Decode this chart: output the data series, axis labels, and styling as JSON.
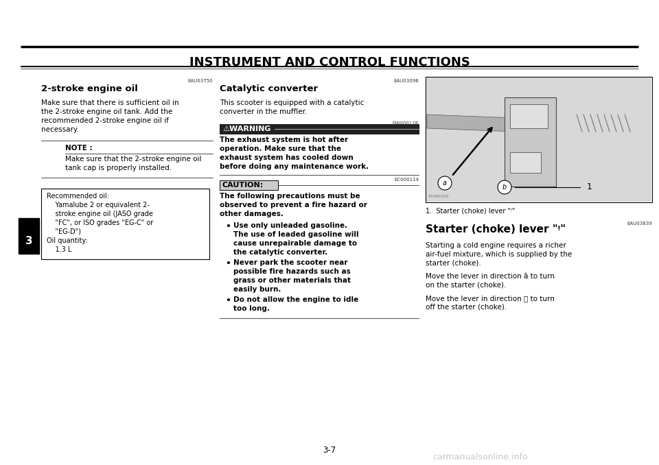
{
  "bg_color": "#ffffff",
  "page_width": 9.6,
  "page_height": 6.78,
  "title": "INSTRUMENT AND CONTROL FUNCTIONS",
  "page_num": "3-7",
  "watermark": "carmanualsonline.info",
  "section1_ref": "EAU03750",
  "section1_heading": "2-stroke engine oil",
  "section1_body": "Make sure that there is sufficient oil in\nthe 2-stroke engine oil tank. Add the\nrecommended 2-stroke engine oil if\nnecessary.",
  "section1_note_label": "NOTE : ",
  "section1_note_body": "Make sure that the 2-stroke engine oil\ntank cap is properly installed.",
  "section1_box_line1": "Recommended oil:",
  "section1_box_line2": "    Yamalube 2 or equivalent 2-",
  "section1_box_line3": "    stroke engine oil (JASO grade",
  "section1_box_line4": "    \"FC\", or ISO grades \"EG-C\" or",
  "section1_box_line5": "    \"EG-D\")",
  "section1_box_line6": "Oil quantity:",
  "section1_box_line7": "    1.3 L",
  "section2_ref": "EAU03098",
  "section2_heading": "Catalytic converter",
  "section2_body": "This scooter is equipped with a catalytic\nconverter in the muffler.",
  "section2_warn_ref": "EW000128",
  "section2_warn_label": "⚠WARNING",
  "section2_warn_body": "The exhaust system is hot after\noperation. Make sure that the\nexhaust system has cooled down\nbefore doing any maintenance work.",
  "section2_caut_ref": "EC000114",
  "section2_caut_label": "CAUTION:",
  "section2_caut_body": "The following precautions must be\nobserved to prevent a fire hazard or\nother damages.",
  "section2_bullet1": "Use only unleaded gasoline.\nThe use of leaded gasoline will\ncause unrepairable damage to\nthe catalytic converter.",
  "section2_bullet2": "Never park the scooter near\npossible fire hazards such as\ngrass or other materials that\neasily burn.",
  "section2_bullet3": "Do not allow the engine to idle\ntoo long.",
  "section3_img_caption": "1.  Starter (choke) lever \"ᵎ\"",
  "section3_ref": "EAU03839",
  "section3_heading": "Starter (choke) lever \"ᵎ\"",
  "section3_body1": "Starting a cold engine requires a richer\nair-fuel mixture, which is supplied by the\nstarter (choke).",
  "section3_body2": "Move the lever in direction â to turn\non the starter (choke).",
  "section3_body3": "Move the lever in direction ⓑ to turn\noff the starter (choke).",
  "tab_number": "3"
}
